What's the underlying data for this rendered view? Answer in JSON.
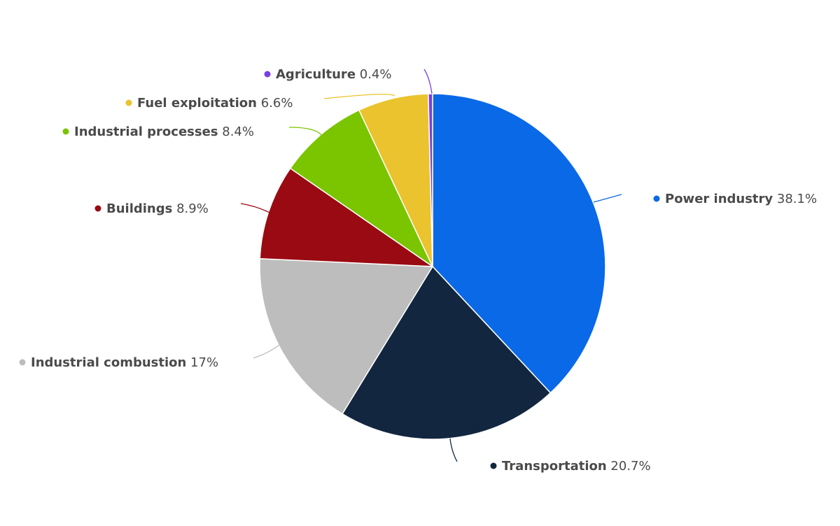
{
  "chart_data": {
    "type": "pie",
    "title": "",
    "slices": [
      {
        "name": "Power industry",
        "value": 38.1,
        "label": "38.1%",
        "color": "#0a69e6"
      },
      {
        "name": "Transportation",
        "value": 20.7,
        "label": "20.7%",
        "color": "#12263f"
      },
      {
        "name": "Industrial combustion",
        "value": 17.0,
        "label": "17%",
        "color": "#bdbdbd"
      },
      {
        "name": "Buildings",
        "value": 8.9,
        "label": "8.9%",
        "color": "#9a0a12"
      },
      {
        "name": "Industrial processes",
        "value": 8.4,
        "label": "8.4%",
        "color": "#7bc400"
      },
      {
        "name": "Fuel exploitation",
        "value": 6.6,
        "label": "6.6%",
        "color": "#eac32e"
      },
      {
        "name": "Agriculture",
        "value": 0.4,
        "label": "0.4%",
        "color": "#7a3fe0"
      }
    ],
    "start_angle": "12 o'clock",
    "direction": "clockwise",
    "legend": "none"
  }
}
